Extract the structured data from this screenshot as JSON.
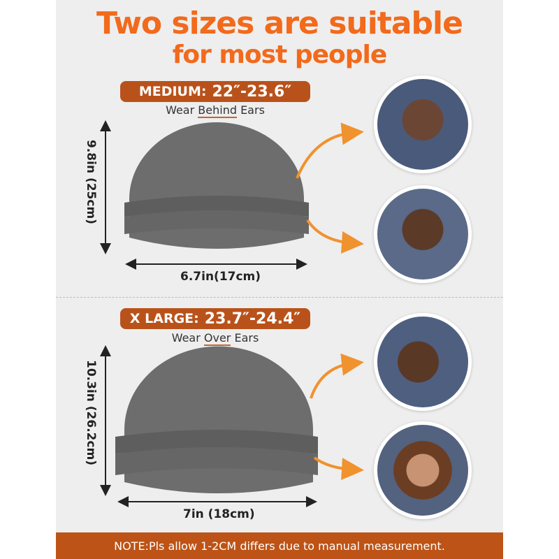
{
  "headline": {
    "line1": "Two sizes are suitable",
    "line2": "for most people"
  },
  "sizes": [
    {
      "label": "MEDIUM:",
      "range": "22″-23.6″",
      "wear_prefix": "Wear ",
      "wear_emph": "Behind",
      "wear_suffix": " Ears",
      "height": "9.8in (25cm)",
      "width": "6.7in(17cm)"
    },
    {
      "label": "X LARGE:",
      "range": "23.7″-24.4″",
      "wear_prefix": "Wear ",
      "wear_emph": "Over",
      "wear_suffix": " Ears",
      "height": "10.3in (26.2cm)",
      "width": "7in (18cm)"
    }
  ],
  "note": "NOTE:Pls allow 1-2CM differs due to manual measurement.",
  "colors": {
    "title": "#f26a1b",
    "pill": "#b9521a",
    "note_bar": "#bd5316",
    "arrow": "#f0922e",
    "hat": "#6d6d6d"
  }
}
